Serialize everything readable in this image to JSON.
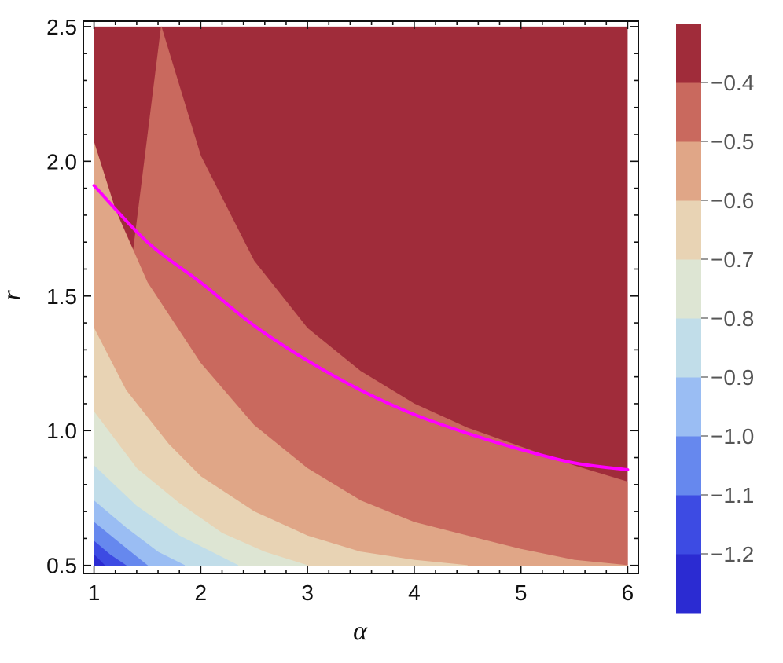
{
  "chart_data": {
    "type": "contour",
    "xlabel": "α",
    "ylabel": "r",
    "xlim": [
      0.9,
      6.1
    ],
    "ylim": [
      0.47,
      2.52
    ],
    "plot_domain": {
      "x": [
        1,
        6
      ],
      "y": [
        0.5,
        2.5
      ]
    },
    "x_ticks": [
      {
        "value": 1,
        "label": "1"
      },
      {
        "value": 2,
        "label": "2"
      },
      {
        "value": 3,
        "label": "3"
      },
      {
        "value": 4,
        "label": "4"
      },
      {
        "value": 5,
        "label": "5"
      },
      {
        "value": 6,
        "label": "6"
      }
    ],
    "y_ticks": [
      {
        "value": 0.5,
        "label": "0.5"
      },
      {
        "value": 1.0,
        "label": "1.0"
      },
      {
        "value": 1.5,
        "label": "1.5"
      },
      {
        "value": 2.0,
        "label": "2.0"
      },
      {
        "value": 2.5,
        "label": "2.5"
      }
    ],
    "contour_levels": [
      -1.2,
      -1.1,
      -1.0,
      -0.9,
      -0.8,
      -0.7,
      -0.6,
      -0.5,
      -0.4
    ],
    "band_colors": [
      "#2b2bd2",
      "#3d4be3",
      "#6688ee",
      "#9abdf3",
      "#c1dde9",
      "#dde5d3",
      "#e8d3b4",
      "#e0a687",
      "#c9695e",
      "#a02c3a"
    ],
    "colorbar_labels": [
      {
        "value": -0.4,
        "label": "−0.4"
      },
      {
        "value": -0.5,
        "label": "−0.5"
      },
      {
        "value": -0.6,
        "label": "−0.6"
      },
      {
        "value": -0.7,
        "label": "−0.7"
      },
      {
        "value": -0.8,
        "label": "−0.8"
      },
      {
        "value": -0.9,
        "label": "−0.9"
      },
      {
        "value": -1.0,
        "label": "−1.0"
      },
      {
        "value": -1.1,
        "label": "−1.1"
      },
      {
        "value": -1.2,
        "label": "−1.2"
      }
    ],
    "boundaries": [
      {
        "level": -0.4,
        "points": [
          [
            1.63,
            2.5
          ],
          [
            2.0,
            2.02
          ],
          [
            2.5,
            1.63
          ],
          [
            3.0,
            1.38
          ],
          [
            3.5,
            1.22
          ],
          [
            4.0,
            1.1
          ],
          [
            4.5,
            1.01
          ],
          [
            5.0,
            0.94
          ],
          [
            5.5,
            0.87
          ],
          [
            6.0,
            0.81
          ]
        ]
      },
      {
        "level": -0.5,
        "points": [
          [
            1.0,
            2.07
          ],
          [
            1.2,
            1.82
          ],
          [
            1.5,
            1.55
          ],
          [
            2.0,
            1.25
          ],
          [
            2.5,
            1.02
          ],
          [
            3.0,
            0.86
          ],
          [
            3.5,
            0.74
          ],
          [
            4.0,
            0.66
          ],
          [
            4.5,
            0.61
          ],
          [
            5.0,
            0.56
          ],
          [
            5.5,
            0.52
          ],
          [
            6.0,
            0.5
          ]
        ]
      },
      {
        "level": -0.6,
        "points": [
          [
            1.0,
            1.38
          ],
          [
            1.3,
            1.15
          ],
          [
            1.7,
            0.95
          ],
          [
            2.0,
            0.83
          ],
          [
            2.5,
            0.7
          ],
          [
            3.0,
            0.61
          ],
          [
            3.5,
            0.55
          ],
          [
            4.0,
            0.52
          ],
          [
            4.5,
            0.5
          ]
        ]
      },
      {
        "level": -0.7,
        "points": [
          [
            1.0,
            1.07
          ],
          [
            1.4,
            0.86
          ],
          [
            1.8,
            0.73
          ],
          [
            2.2,
            0.62
          ],
          [
            2.6,
            0.55
          ],
          [
            3.0,
            0.5
          ]
        ]
      },
      {
        "level": -0.8,
        "points": [
          [
            1.0,
            0.87
          ],
          [
            1.4,
            0.72
          ],
          [
            1.8,
            0.61
          ],
          [
            2.2,
            0.53
          ],
          [
            2.35,
            0.5
          ]
        ]
      },
      {
        "level": -0.9,
        "points": [
          [
            1.0,
            0.74
          ],
          [
            1.3,
            0.64
          ],
          [
            1.6,
            0.55
          ],
          [
            1.85,
            0.5
          ]
        ]
      },
      {
        "level": -1.0,
        "points": [
          [
            1.0,
            0.66
          ],
          [
            1.25,
            0.58
          ],
          [
            1.5,
            0.5
          ]
        ]
      },
      {
        "level": -1.1,
        "points": [
          [
            1.0,
            0.59
          ],
          [
            1.15,
            0.54
          ],
          [
            1.3,
            0.5
          ]
        ]
      },
      {
        "level": -1.2,
        "points": [
          [
            1.0,
            0.54
          ],
          [
            1.1,
            0.5
          ]
        ]
      }
    ],
    "curve": {
      "color": "#ff00ff",
      "points": [
        [
          1.0,
          1.91
        ],
        [
          1.5,
          1.7
        ],
        [
          2.0,
          1.55
        ],
        [
          2.5,
          1.39
        ],
        [
          3.0,
          1.26
        ],
        [
          3.5,
          1.15
        ],
        [
          4.0,
          1.06
        ],
        [
          4.5,
          0.99
        ],
        [
          5.0,
          0.93
        ],
        [
          5.5,
          0.88
        ],
        [
          6.0,
          0.855
        ]
      ]
    },
    "grid": false,
    "legend": "colorbar-right"
  }
}
